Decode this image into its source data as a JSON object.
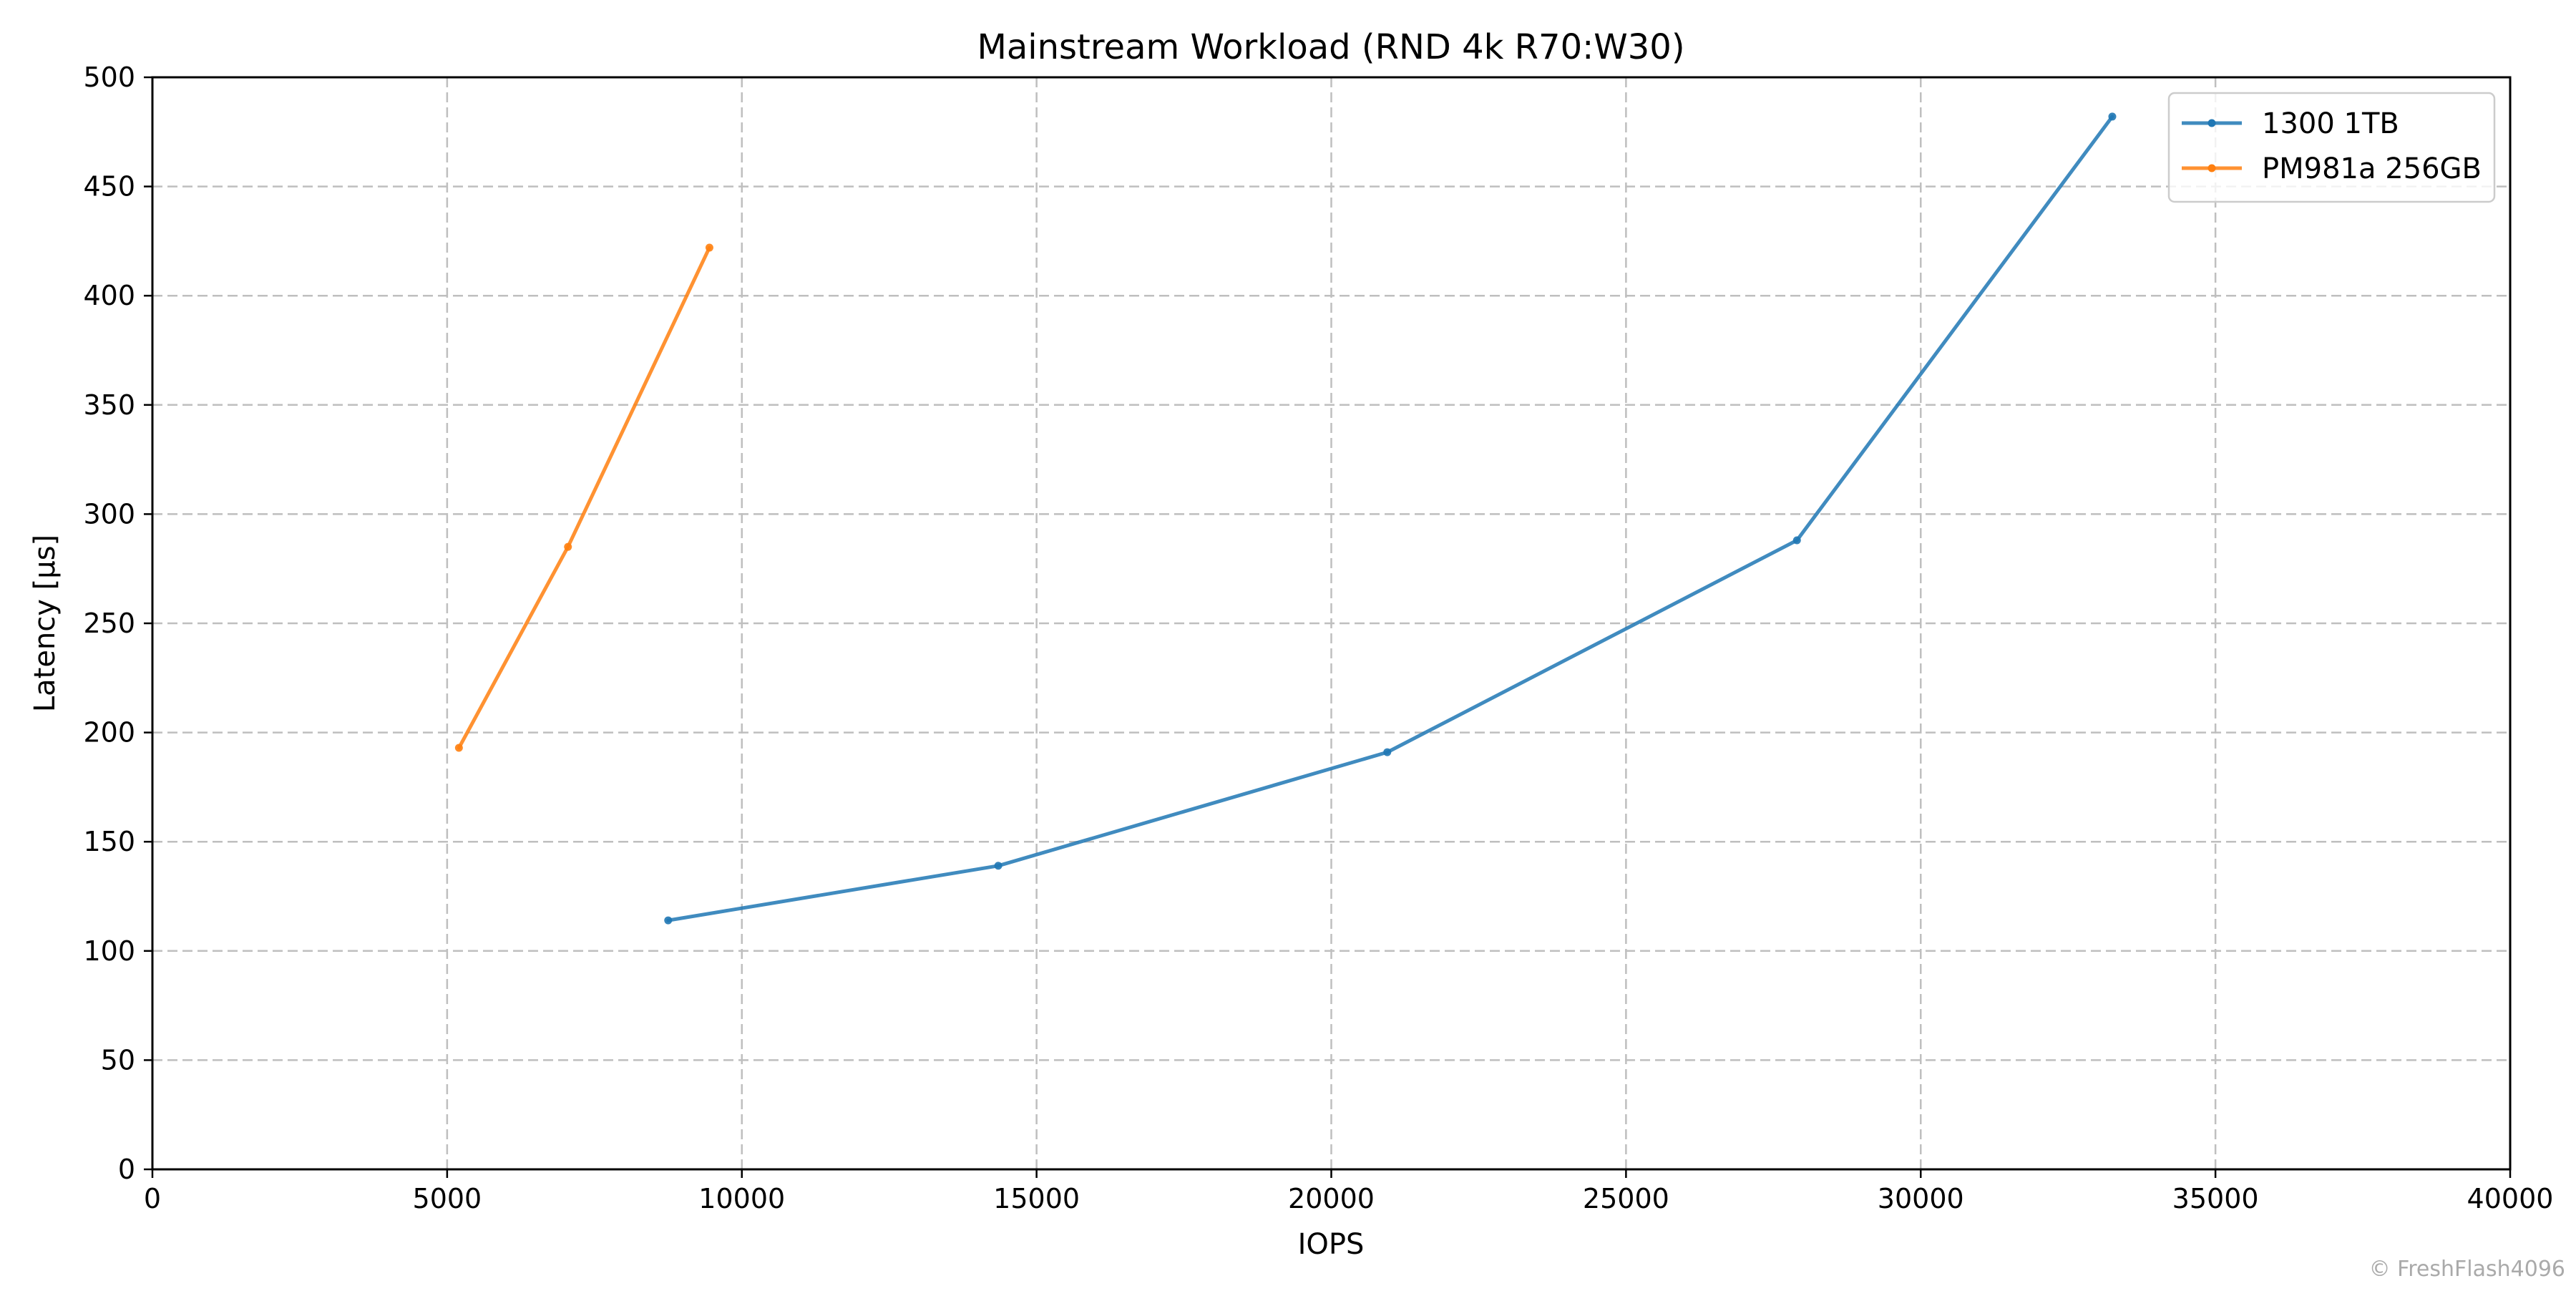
{
  "chart_data": {
    "type": "line",
    "title": "Mainstream Workload (RND 4k R70:W30)",
    "xlabel": "IOPS",
    "ylabel": "Latency [µs]",
    "xlim": [
      0,
      40000
    ],
    "ylim": [
      0,
      500
    ],
    "x_ticks": [
      0,
      5000,
      10000,
      15000,
      20000,
      25000,
      30000,
      35000,
      40000
    ],
    "y_ticks": [
      0,
      50,
      100,
      150,
      200,
      250,
      300,
      350,
      400,
      450,
      500
    ],
    "grid": true,
    "legend_position": "top-right",
    "series": [
      {
        "name": "1300 1TB",
        "color": "#1f77b4",
        "x": [
          8750,
          14350,
          20950,
          27900,
          33250
        ],
        "y": [
          114,
          139,
          191,
          288,
          482
        ]
      },
      {
        "name": "PM981a 256GB",
        "color": "#ff7f0e",
        "x": [
          5200,
          7050,
          9450
        ],
        "y": [
          193,
          285,
          422
        ]
      }
    ]
  },
  "watermark": "© FreshFlash4096"
}
